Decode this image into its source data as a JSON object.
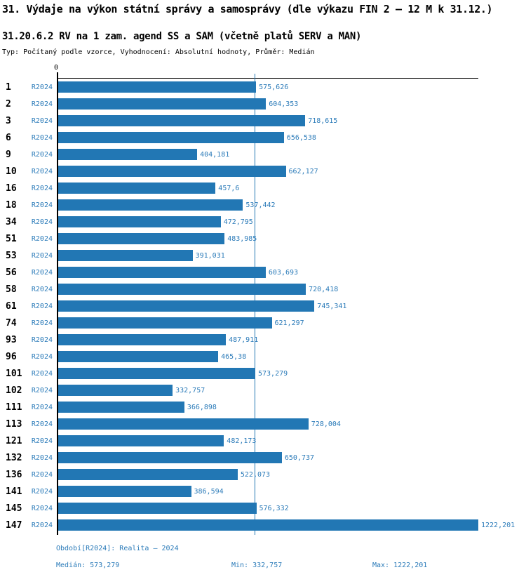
{
  "header": {
    "title": "31. Výdaje na výkon státní správy a samosprávy (dle výkazu FIN 2 – 12 M k 31.12.)",
    "subtitle": "31.20.6.2 RV na 1 zam. agend SS a SAM (včetně platů SERV a MAN)",
    "meta": "Typ: Počítaný podle vzorce, Vyhodnocení: Absolutní hodnoty, Průměr: Medián"
  },
  "axis": {
    "zero_label": "0"
  },
  "chart_data": {
    "type": "bar",
    "orientation": "horizontal",
    "title": "31.20.6.2 RV na 1 zam. agend SS a SAM (včetně platů SERV a MAN)",
    "xlabel": "",
    "ylabel": "",
    "xlim": [
      0,
      1222.201
    ],
    "grid": false,
    "legend_position": "none",
    "categories": [
      "1",
      "2",
      "3",
      "6",
      "9",
      "10",
      "16",
      "18",
      "34",
      "51",
      "53",
      "56",
      "58",
      "61",
      "74",
      "93",
      "96",
      "101",
      "102",
      "111",
      "113",
      "121",
      "132",
      "136",
      "141",
      "145",
      "147"
    ],
    "series": [
      {
        "name": "R2024",
        "values": [
          575.626,
          604.353,
          718.615,
          656.538,
          404.181,
          662.127,
          457.6,
          537.442,
          472.795,
          483.985,
          391.031,
          603.693,
          720.418,
          745.341,
          621.297,
          487.911,
          465.38,
          573.279,
          332.757,
          366.898,
          728.004,
          482.173,
          650.737,
          522.073,
          386.594,
          576.332,
          1222.201
        ]
      }
    ],
    "value_labels": [
      "575,626",
      "604,353",
      "718,615",
      "656,538",
      "404,181",
      "662,127",
      "457,6",
      "537,442",
      "472,795",
      "483,985",
      "391,031",
      "603,693",
      "720,418",
      "745,341",
      "621,297",
      "487,911",
      "465,38",
      "573,279",
      "332,757",
      "366,898",
      "728,004",
      "482,173",
      "650,737",
      "522,073",
      "386,594",
      "576,332",
      "1222,201"
    ],
    "period_label": "R2024",
    "median_value": 573.279,
    "annotations": [
      "median-reference-line"
    ]
  },
  "footer": {
    "period": "Období[R2024]: Realita – 2024",
    "median": "Medián: 573,279",
    "min": "Min: 332,757",
    "max": "Max: 1222,201"
  },
  "colors": {
    "bar": "#2277b4",
    "text_blue": "#2b7bb9",
    "axis": "#000000",
    "background": "#ffffff"
  }
}
